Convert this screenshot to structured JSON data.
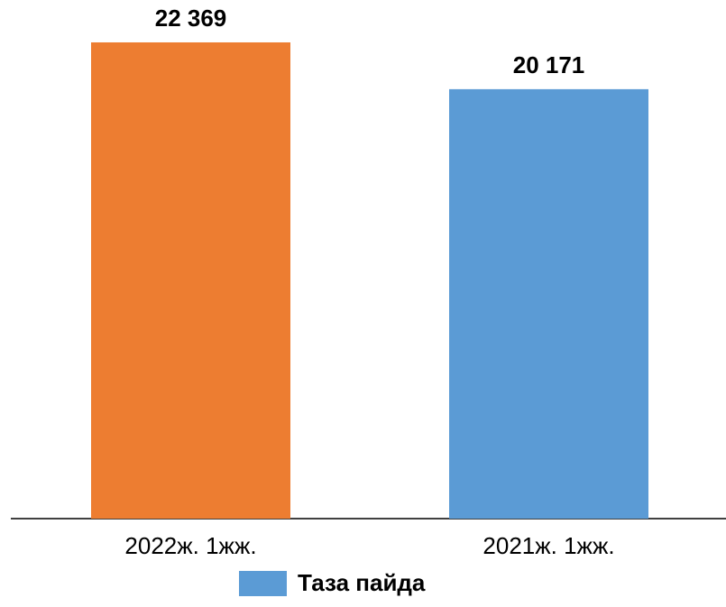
{
  "chart_data": {
    "type": "bar",
    "categories": [
      "2022ж. 1жж.",
      "2021ж. 1жж."
    ],
    "series": [
      {
        "name": "Таза пайда",
        "color": "#5B9BD5",
        "colors": [
          "#ED7D31",
          "#5B9BD5"
        ],
        "values": [
          22369,
          20171
        ],
        "value_labels": [
          "22 369",
          "20 171"
        ]
      }
    ],
    "ylim": [
      0,
      24000
    ]
  }
}
